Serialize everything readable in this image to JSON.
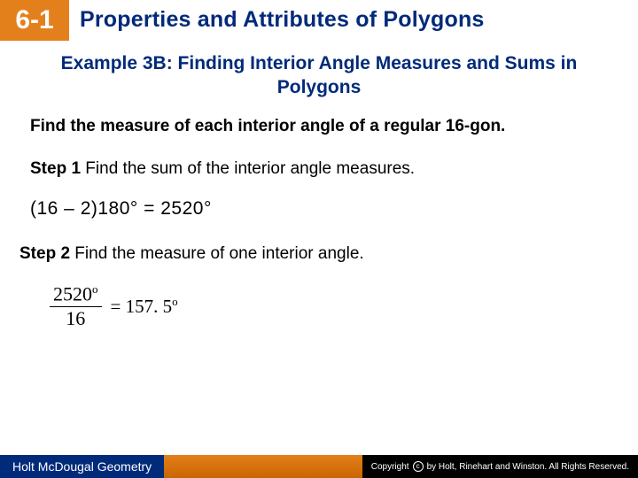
{
  "header": {
    "chapter_number": "6-1",
    "chapter_title": "Properties and Attributes of Polygons"
  },
  "example": {
    "title": "Example 3B: Finding Interior Angle Measures and Sums in Polygons",
    "prompt": "Find the measure of each interior angle of a regular 16-gon."
  },
  "step1": {
    "label": "Step 1",
    "text": " Find the sum of the interior angle measures.",
    "formula": "(16 – 2)180° = 2520°"
  },
  "step2": {
    "label": "Step 2",
    "text": " Find the measure of one interior angle.",
    "fraction": {
      "numerator": "2520",
      "denominator": "16",
      "result": "= 157. 5"
    }
  },
  "footer": {
    "left": "Holt McDougal Geometry",
    "right": "by Holt, Rinehart and Winston. All Rights Reserved.",
    "copyright_label": "Copyright"
  },
  "colors": {
    "brand_orange": "#e4801c",
    "brand_navy": "#002a7a",
    "text_black": "#000000",
    "bg_white": "#ffffff"
  }
}
